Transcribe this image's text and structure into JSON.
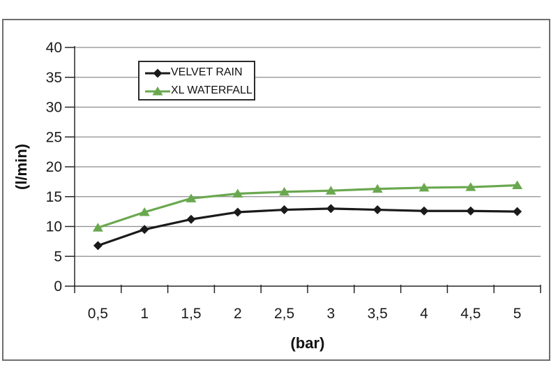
{
  "chart_data": {
    "type": "line",
    "title": "",
    "xlabel": "(bar)",
    "ylabel": "(l/min)",
    "categories": [
      "0,5",
      "1",
      "1,5",
      "2",
      "2,5",
      "3",
      "3,5",
      "4",
      "4,5",
      "5"
    ],
    "series": [
      {
        "name": "VELVET RAIN",
        "color": "#1a1a1a",
        "marker": "diamond",
        "values": [
          6.8,
          9.5,
          11.2,
          12.4,
          12.8,
          13.0,
          12.8,
          12.6,
          12.6,
          12.5
        ]
      },
      {
        "name": "XL WATERFALL",
        "color": "#6aa84f",
        "marker": "triangle",
        "values": [
          9.8,
          12.4,
          14.7,
          15.5,
          15.8,
          16.0,
          16.3,
          16.5,
          16.6,
          16.9
        ]
      }
    ],
    "ylim": [
      0,
      40
    ],
    "yticks": [
      0,
      5,
      10,
      15,
      20,
      25,
      30,
      35,
      40
    ],
    "grid": "horizontal",
    "legend_position": "top-left-inside"
  },
  "colors": {
    "background": "#ffffff",
    "frame_border": "#6e6e6e",
    "gridline": "#8c8c8c",
    "axis": "#262626",
    "text": "#1a1a1a",
    "legend_border": "#2b2b2b"
  }
}
